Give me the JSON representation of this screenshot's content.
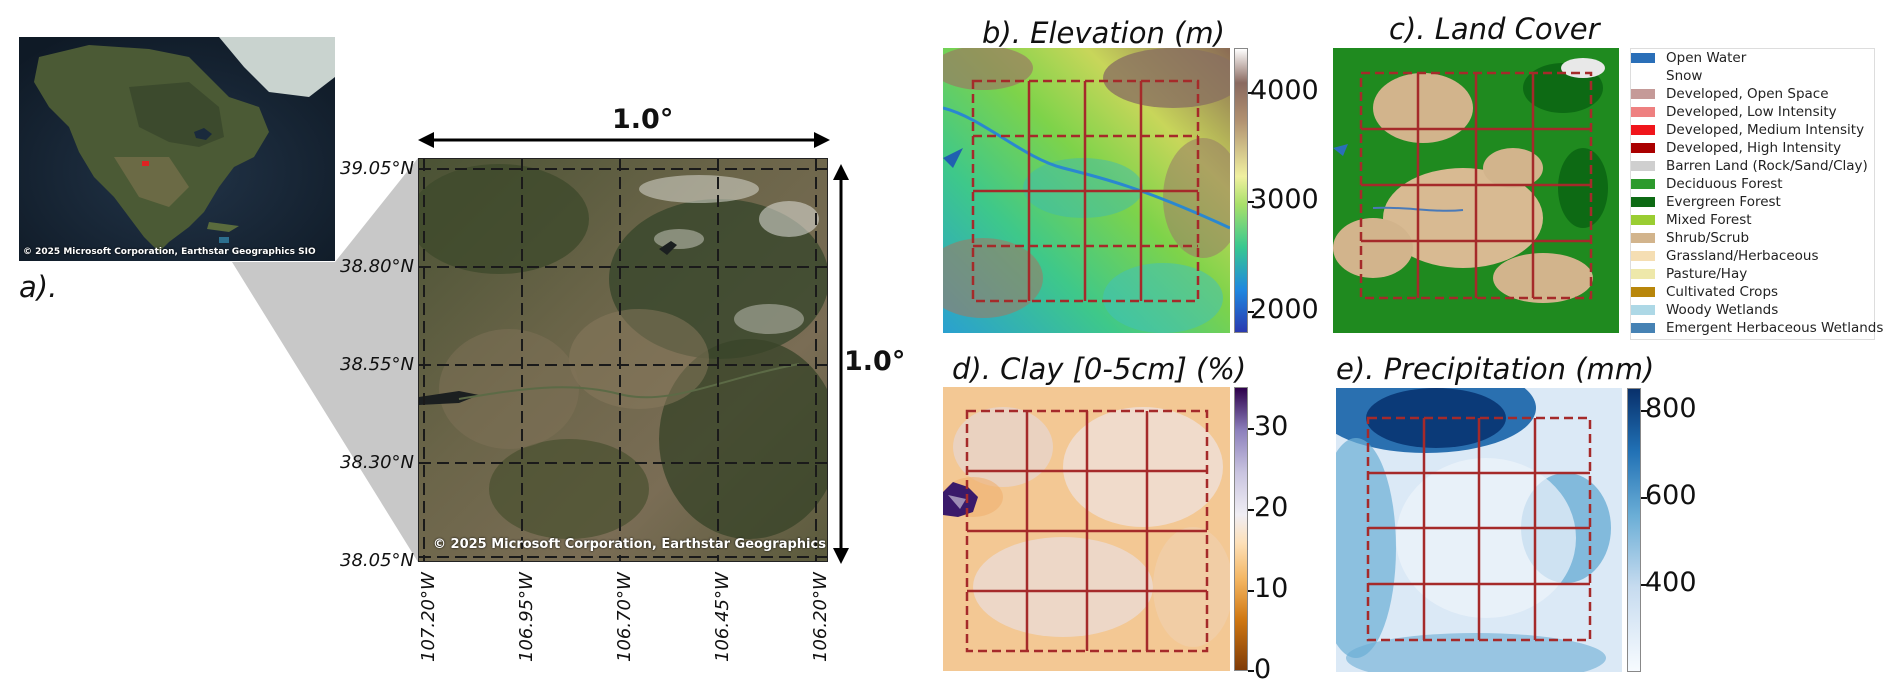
{
  "panel_a": {
    "label": "a).",
    "inset_credit": "© 2025 Microsoft Corporation, Earthstar Geographics SIO",
    "map_credit": "© 2025 Microsoft Corporation, Earthstar Geographics SIO",
    "width_label": "1.0°",
    "height_label": "1.0°",
    "lat_ticks": [
      "39.05°N",
      "38.80°N",
      "38.55°N",
      "38.30°N",
      "38.05°N"
    ],
    "lon_ticks": [
      "107.20°W",
      "106.95°W",
      "106.70°W",
      "106.45°W",
      "106.20°W"
    ]
  },
  "panel_b": {
    "title": "b). Elevation (m)",
    "colorbar_ticks": [
      "4000",
      "3000",
      "2000"
    ]
  },
  "panel_c": {
    "title": "c). Land Cover",
    "legend": [
      {
        "label": "Open Water",
        "color": "#2a6fb8"
      },
      {
        "label": "Snow",
        "color": "#ffffff"
      },
      {
        "label": "Developed, Open Space",
        "color": "#c59a98"
      },
      {
        "label": "Developed, Low Intensity",
        "color": "#ee8080"
      },
      {
        "label": "Developed, Medium Intensity",
        "color": "#f0151b"
      },
      {
        "label": "Developed, High Intensity",
        "color": "#aa0000"
      },
      {
        "label": "Barren Land (Rock/Sand/Clay)",
        "color": "#cfcfcf"
      },
      {
        "label": "Deciduous Forest",
        "color": "#2d9a2d"
      },
      {
        "label": "Evergreen Forest",
        "color": "#0d6a14"
      },
      {
        "label": "Mixed Forest",
        "color": "#9acd32"
      },
      {
        "label": "Shrub/Scrub",
        "color": "#d2b48c"
      },
      {
        "label": "Grassland/Herbaceous",
        "color": "#f5deb3"
      },
      {
        "label": "Pasture/Hay",
        "color": "#eee8aa"
      },
      {
        "label": "Cultivated Crops",
        "color": "#b8860b"
      },
      {
        "label": "Woody Wetlands",
        "color": "#add8e6"
      },
      {
        "label": "Emergent Herbaceous Wetlands",
        "color": "#4682b4"
      }
    ]
  },
  "panel_d": {
    "title": "d). Clay [0-5cm] (%)",
    "colorbar_ticks": [
      "30",
      "20",
      "10",
      "0"
    ]
  },
  "panel_e": {
    "title": "e). Precipitation (mm)",
    "colorbar_ticks": [
      "800",
      "600",
      "400"
    ]
  },
  "colors": {
    "grid_red": "#a52a2a",
    "grid_black": "#1a1a1a",
    "zoom_wedge": "#c8c8c8"
  }
}
